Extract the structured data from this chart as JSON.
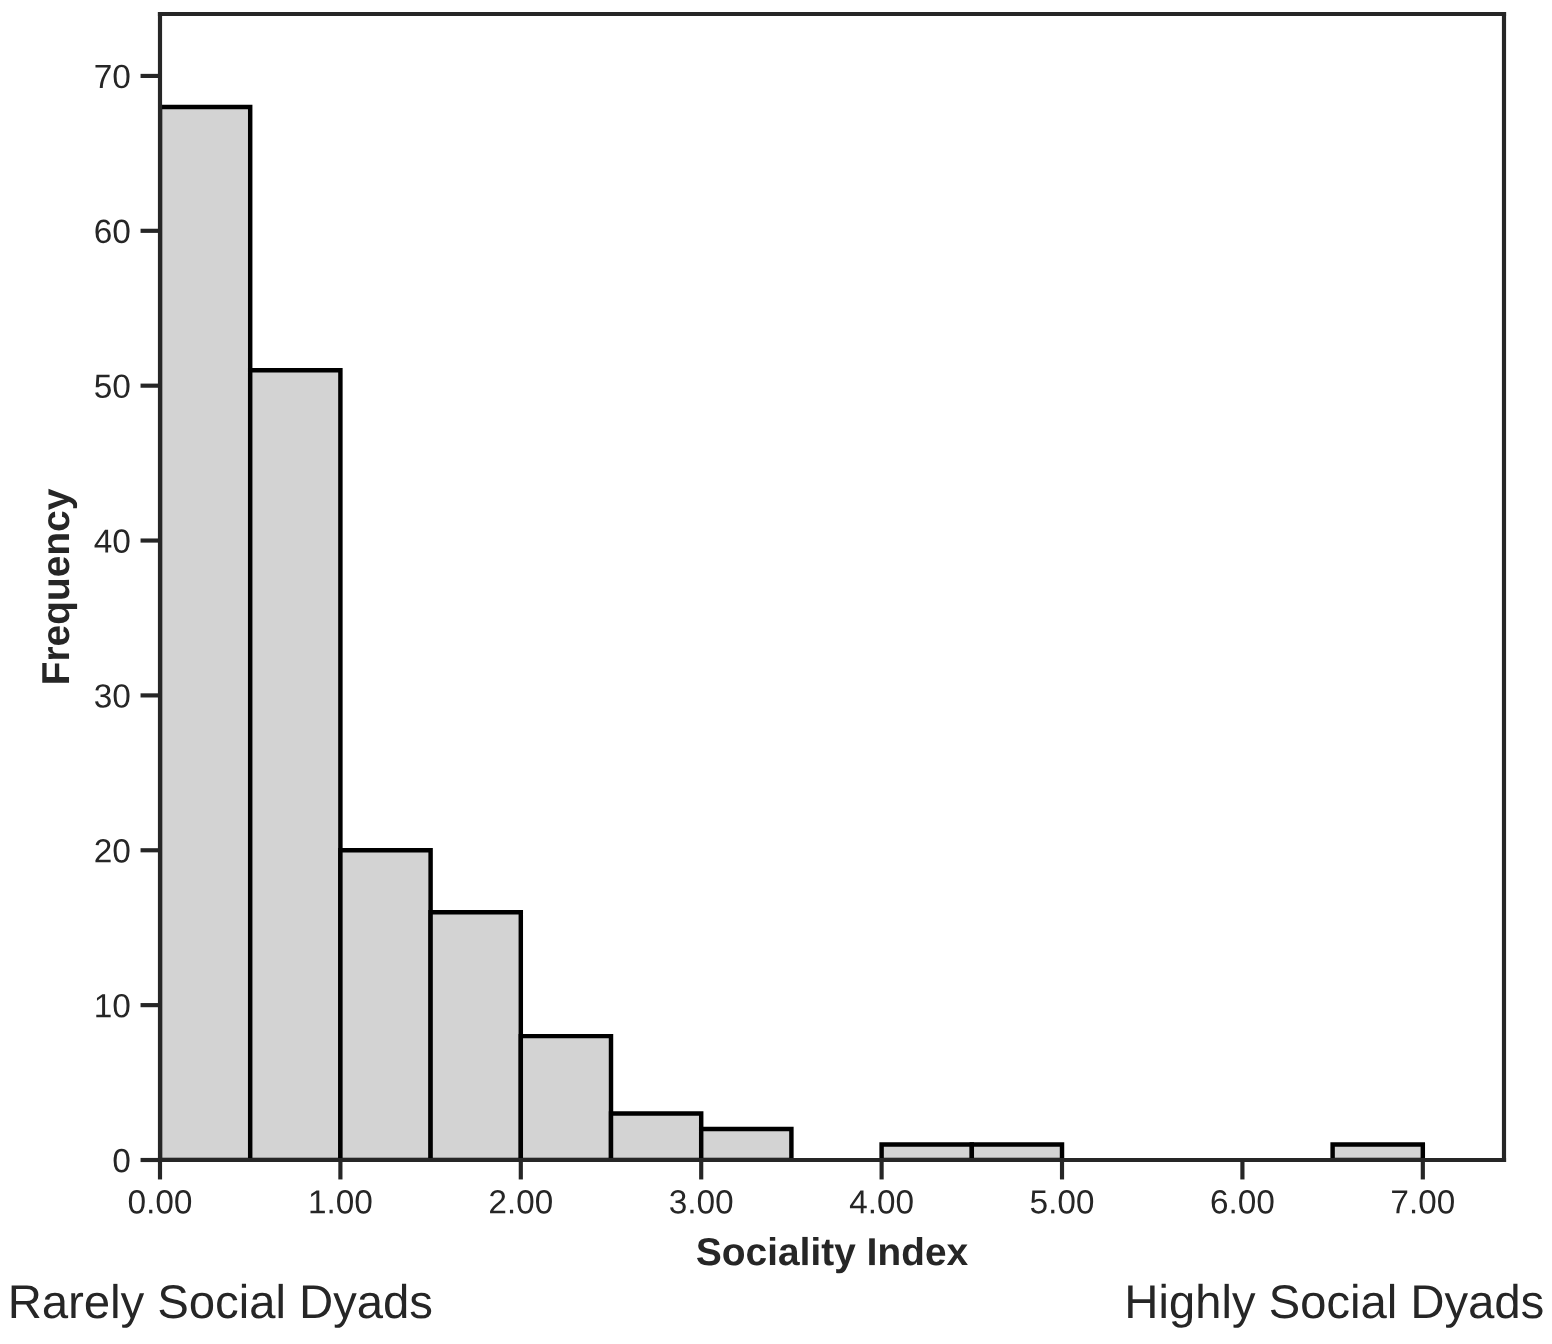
{
  "chart_data": {
    "type": "histogram",
    "xlabel": "Sociality Index",
    "ylabel": "Frequency",
    "bins": [
      0,
      0.5,
      1.0,
      1.5,
      2.0,
      2.5,
      3.0,
      3.5,
      4.0,
      4.5,
      5.0,
      5.5,
      6.0,
      6.5,
      7.0
    ],
    "values": [
      68,
      51,
      20,
      16,
      8,
      3,
      2,
      0,
      1,
      1,
      0,
      0,
      0,
      1
    ],
    "color": "#d3d3d3",
    "xlim": [
      0,
      7.45
    ],
    "ylim": [
      0,
      74
    ],
    "xticks": [
      {
        "value": 0,
        "label": "0.00"
      },
      {
        "value": 1,
        "label": "1.00"
      },
      {
        "value": 2,
        "label": "2.00"
      },
      {
        "value": 3,
        "label": "3.00"
      },
      {
        "value": 4,
        "label": "4.00"
      },
      {
        "value": 5,
        "label": "5.00"
      },
      {
        "value": 6,
        "label": "6.00"
      },
      {
        "value": 7,
        "label": "7.00"
      }
    ],
    "yticks": [
      0,
      10,
      20,
      30,
      40,
      50,
      60,
      70
    ],
    "annotations": [
      "Rarely Social Dyads",
      "Highly Social Dyads"
    ],
    "grid": false
  }
}
